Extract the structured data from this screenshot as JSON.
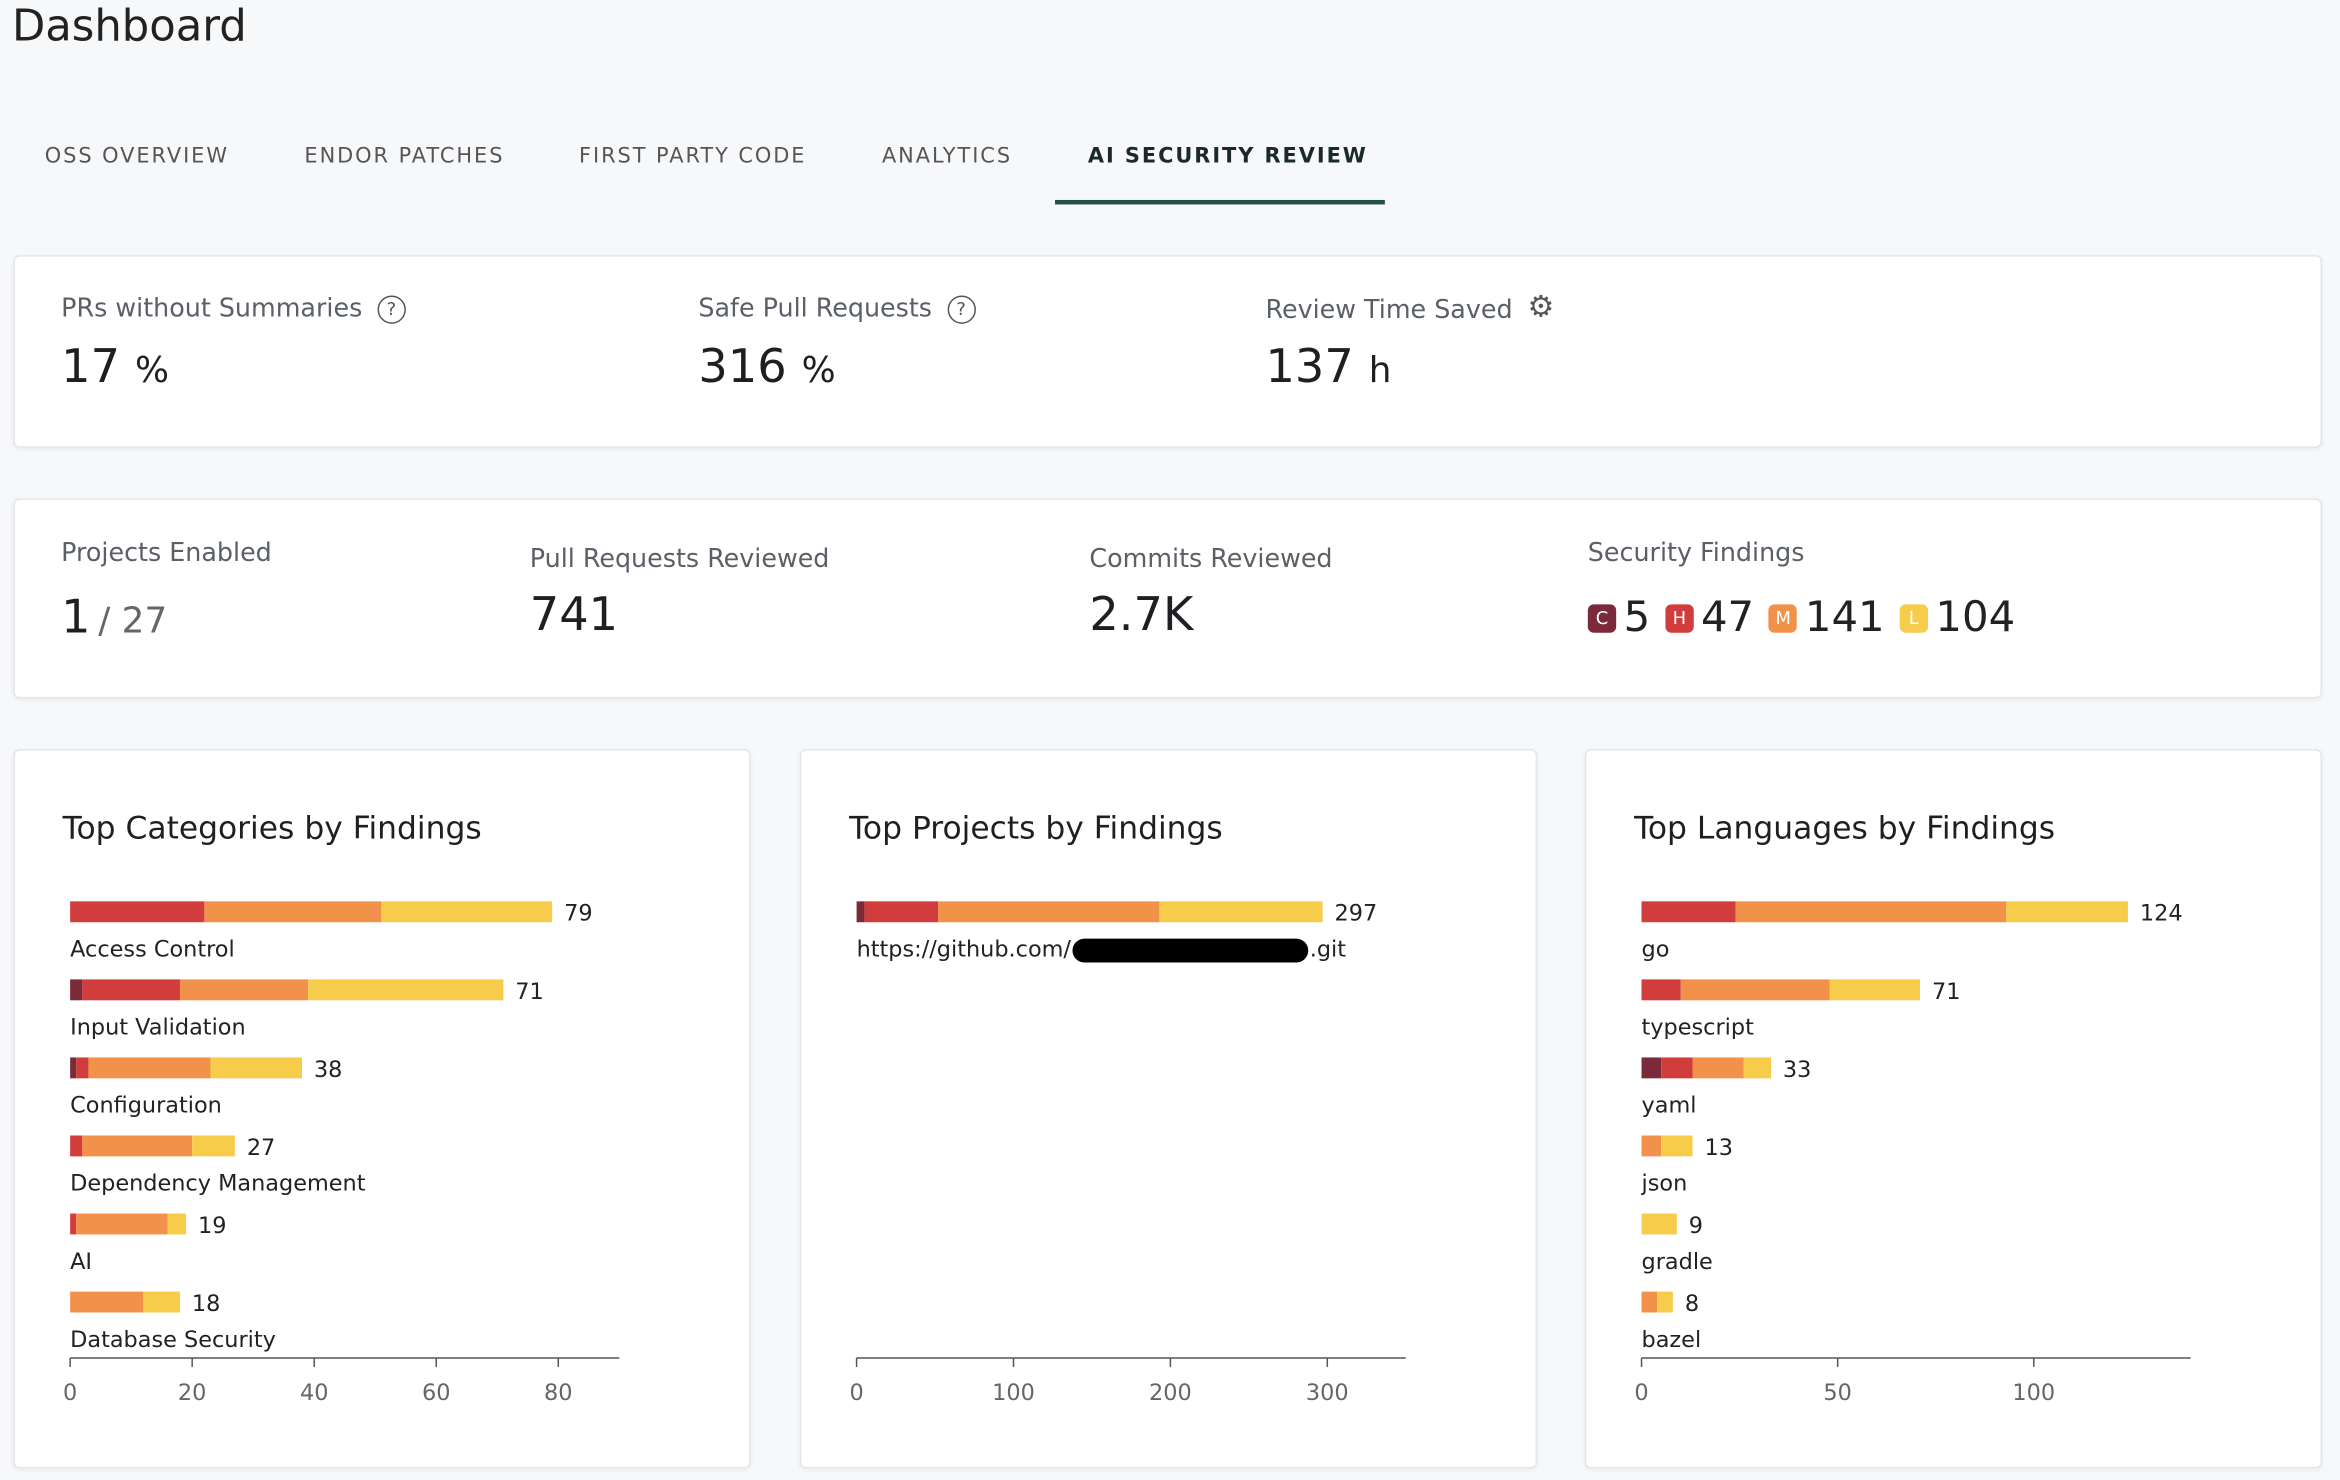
{
  "header": {
    "title": "Dashboard"
  },
  "tabs": {
    "items": [
      "OSS OVERVIEW",
      "ENDOR PATCHES",
      "FIRST PARTY CODE",
      "ANALYTICS",
      "AI SECURITY REVIEW"
    ],
    "active": 4
  },
  "metrics": [
    {
      "label": "PRs without Summaries",
      "value": "17",
      "unit": "%"
    },
    {
      "label": "Safe Pull Requests",
      "value": "316",
      "unit": "%"
    },
    {
      "label": "Review Time Saved",
      "value": "137",
      "unit": "h"
    }
  ],
  "stats": {
    "projects": {
      "label": "Projects Enabled",
      "value": "1",
      "total": "/ 27"
    },
    "pull_requests": {
      "label": "Pull Requests Reviewed",
      "value": "741"
    },
    "commits": {
      "label": "Commits Reviewed",
      "value": "2.7K"
    },
    "findings": {
      "label": "Security Findings",
      "items": [
        {
          "badge": "C",
          "count": "5",
          "color": "#7b2a3a"
        },
        {
          "badge": "H",
          "count": "47",
          "color": "#d13c3c"
        },
        {
          "badge": "M",
          "count": "141",
          "color": "#f2924a"
        },
        {
          "badge": "L",
          "count": "104",
          "color": "#f7cc4a"
        }
      ]
    }
  },
  "chart_data": [
    {
      "type": "stacked_bar_h",
      "title": "Top Categories by Findings",
      "categories": [
        "Access Control",
        "Input Validation",
        "Configuration",
        "Dependency Management",
        "AI",
        "Database Security"
      ],
      "series": [
        {
          "color": "#7b2a3a",
          "values": [
            0,
            2,
            1,
            0,
            0,
            0
          ]
        },
        {
          "color": "#d13c3c",
          "values": [
            22,
            16,
            2,
            2,
            1,
            0
          ]
        },
        {
          "color": "#f2924a",
          "values": [
            29,
            21,
            20,
            18,
            15,
            12
          ]
        },
        {
          "color": "#f7cc4a",
          "values": [
            28,
            32,
            15,
            7,
            3,
            6
          ]
        }
      ],
      "totals": [
        79,
        71,
        38,
        27,
        19,
        18
      ],
      "xlim": [
        0,
        90
      ],
      "xticks": [
        0,
        20,
        40,
        60,
        80
      ]
    },
    {
      "type": "stacked_bar_h",
      "title": "Top Projects by Findings",
      "categories": [
        "https://github.com/"
      ],
      "category_suffix": [
        ".git"
      ],
      "series": [
        {
          "color": "#7b2a3a",
          "values": [
            5
          ]
        },
        {
          "color": "#d13c3c",
          "values": [
            47
          ]
        },
        {
          "color": "#f2924a",
          "values": [
            141
          ]
        },
        {
          "color": "#f7cc4a",
          "values": [
            104
          ]
        }
      ],
      "totals": [
        297
      ],
      "xlim": [
        0,
        350
      ],
      "xticks": [
        0,
        100,
        200,
        300
      ]
    },
    {
      "type": "stacked_bar_h",
      "title": "Top Languages by Findings",
      "categories": [
        "go",
        "typescript",
        "yaml",
        "json",
        "gradle",
        "bazel"
      ],
      "series": [
        {
          "color": "#7b2a3a",
          "values": [
            0,
            0,
            5,
            0,
            0,
            0
          ]
        },
        {
          "color": "#d13c3c",
          "values": [
            24,
            10,
            8,
            0,
            0,
            0
          ]
        },
        {
          "color": "#f2924a",
          "values": [
            69,
            38,
            13,
            5,
            0,
            4
          ]
        },
        {
          "color": "#f7cc4a",
          "values": [
            31,
            23,
            7,
            8,
            9,
            4
          ]
        }
      ],
      "totals": [
        124,
        71,
        33,
        13,
        9,
        8
      ],
      "xlim": [
        0,
        140
      ],
      "xticks": [
        0,
        50,
        100
      ]
    }
  ]
}
